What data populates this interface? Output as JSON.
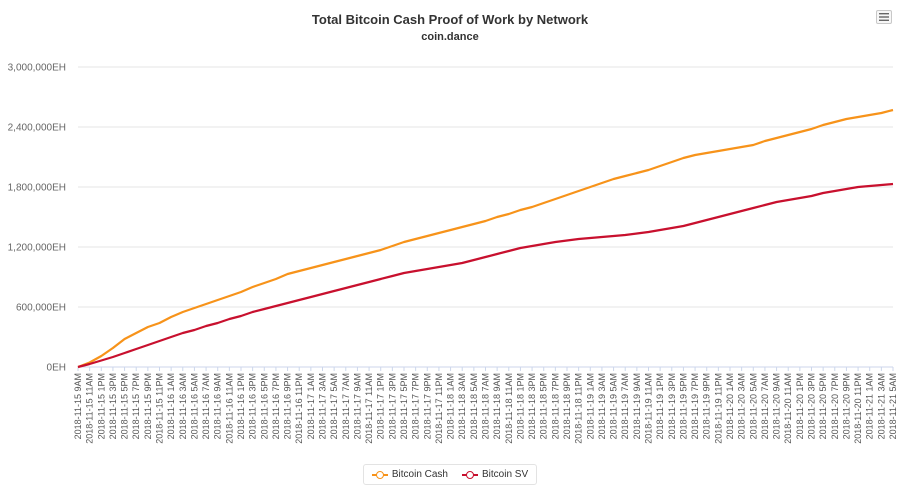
{
  "header": {
    "title": "Total Bitcoin Cash Proof of Work by Network",
    "subtitle": "coin.dance"
  },
  "legend": {
    "items": [
      {
        "label": "Bitcoin Cash",
        "color": "#f7931a"
      },
      {
        "label": "Bitcoin SV",
        "color": "#c8102e"
      }
    ]
  },
  "menu_icon": "hamburger-menu-icon",
  "chart_data": {
    "type": "line",
    "title": "Total Bitcoin Cash Proof of Work by Network",
    "subtitle": "coin.dance",
    "xlabel": "",
    "ylabel": "",
    "ylim": [
      0,
      3000000
    ],
    "y_ticks": [
      "0EH",
      "600,000EH",
      "1,200,000EH",
      "1,800,000EH",
      "2,400,000EH",
      "3,000,000EH"
    ],
    "y_tick_values": [
      0,
      600000,
      1200000,
      1800000,
      2400000,
      3000000
    ],
    "grid": true,
    "legend_position": "bottom-center",
    "x_labels": [
      "2018-11-15 9AM",
      "2018-11-15 11AM",
      "2018-11-15 1PM",
      "2018-11-15 3PM",
      "2018-11-15 5PM",
      "2018-11-15 7PM",
      "2018-11-15 9PM",
      "2018-11-15 11PM",
      "2018-11-16 1AM",
      "2018-11-16 3AM",
      "2018-11-16 5AM",
      "2018-11-16 7AM",
      "2018-11-16 9AM",
      "2018-11-16 11AM",
      "2018-11-16 1PM",
      "2018-11-16 3PM",
      "2018-11-16 5PM",
      "2018-11-16 7PM",
      "2018-11-16 9PM",
      "2018-11-16 11PM",
      "2018-11-17 1AM",
      "2018-11-17 3AM",
      "2018-11-17 5AM",
      "2018-11-17 7AM",
      "2018-11-17 9AM",
      "2018-11-17 11AM",
      "2018-11-17 1PM",
      "2018-11-17 3PM",
      "2018-11-17 5PM",
      "2018-11-17 7PM",
      "2018-11-17 9PM",
      "2018-11-17 11PM",
      "2018-11-18 1AM",
      "2018-11-18 3AM",
      "2018-11-18 5AM",
      "2018-11-18 7AM",
      "2018-11-18 9AM",
      "2018-11-18 11AM",
      "2018-11-18 1PM",
      "2018-11-18 3PM",
      "2018-11-18 5PM",
      "2018-11-18 7PM",
      "2018-11-18 9PM",
      "2018-11-18 11PM",
      "2018-11-19 1AM",
      "2018-11-19 3AM",
      "2018-11-19 5AM",
      "2018-11-19 7AM",
      "2018-11-19 9AM",
      "2018-11-19 11AM",
      "2018-11-19 1PM",
      "2018-11-19 3PM",
      "2018-11-19 5PM",
      "2018-11-19 7PM",
      "2018-11-19 9PM",
      "2018-11-19 11PM",
      "2018-11-20 1AM",
      "2018-11-20 3AM",
      "2018-11-20 5AM",
      "2018-11-20 7AM",
      "2018-11-20 9AM",
      "2018-11-20 11AM",
      "2018-11-20 1PM",
      "2018-11-20 3PM",
      "2018-11-20 5PM",
      "2018-11-20 7PM",
      "2018-11-20 9PM",
      "2018-11-20 11PM",
      "2018-11-21 1AM",
      "2018-11-21 3AM",
      "2018-11-21 5AM"
    ],
    "series": [
      {
        "name": "Bitcoin Cash",
        "color": "#f7931a",
        "values": [
          0,
          45000,
          110000,
          190000,
          280000,
          340000,
          400000,
          440000,
          500000,
          550000,
          590000,
          630000,
          670000,
          710000,
          750000,
          800000,
          840000,
          880000,
          930000,
          960000,
          990000,
          1020000,
          1050000,
          1080000,
          1110000,
          1140000,
          1170000,
          1210000,
          1250000,
          1280000,
          1310000,
          1340000,
          1370000,
          1400000,
          1430000,
          1460000,
          1500000,
          1530000,
          1570000,
          1600000,
          1640000,
          1680000,
          1720000,
          1760000,
          1800000,
          1840000,
          1880000,
          1910000,
          1940000,
          1970000,
          2010000,
          2050000,
          2090000,
          2120000,
          2140000,
          2160000,
          2180000,
          2200000,
          2220000,
          2260000,
          2290000,
          2320000,
          2350000,
          2380000,
          2420000,
          2450000,
          2480000,
          2500000,
          2520000,
          2540000,
          2570000
        ]
      },
      {
        "name": "Bitcoin SV",
        "color": "#c8102e",
        "values": [
          0,
          30000,
          65000,
          100000,
          140000,
          180000,
          220000,
          260000,
          300000,
          340000,
          370000,
          410000,
          440000,
          480000,
          510000,
          550000,
          580000,
          610000,
          640000,
          670000,
          700000,
          730000,
          760000,
          790000,
          820000,
          850000,
          880000,
          910000,
          940000,
          960000,
          980000,
          1000000,
          1020000,
          1040000,
          1070000,
          1100000,
          1130000,
          1160000,
          1190000,
          1210000,
          1230000,
          1250000,
          1265000,
          1280000,
          1290000,
          1300000,
          1310000,
          1320000,
          1335000,
          1350000,
          1370000,
          1390000,
          1410000,
          1440000,
          1470000,
          1500000,
          1530000,
          1560000,
          1590000,
          1620000,
          1650000,
          1670000,
          1690000,
          1710000,
          1740000,
          1760000,
          1780000,
          1800000,
          1810000,
          1820000,
          1830000
        ]
      }
    ]
  }
}
